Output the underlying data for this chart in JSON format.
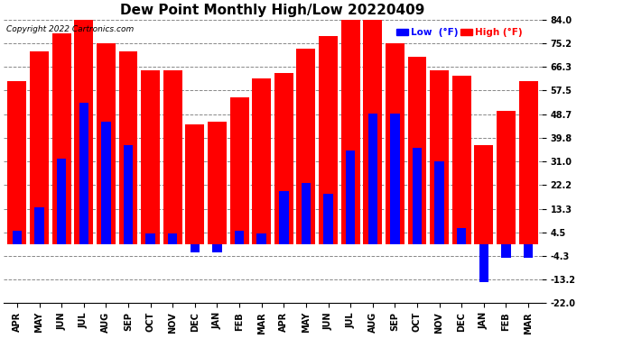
{
  "title": "Dew Point Monthly High/Low 20220409",
  "copyright": "Copyright 2022 Cartronics.com",
  "months": [
    "APR",
    "MAY",
    "JUN",
    "JUL",
    "AUG",
    "SEP",
    "OCT",
    "NOV",
    "DEC",
    "JAN",
    "FEB",
    "MAR",
    "APR",
    "MAY",
    "JUN",
    "JUL",
    "AUG",
    "SEP",
    "OCT",
    "NOV",
    "DEC",
    "JAN",
    "FEB",
    "MAR"
  ],
  "high_values": [
    61,
    72,
    79,
    84,
    75,
    72,
    65,
    65,
    45,
    46,
    55,
    62,
    64,
    73,
    78,
    84,
    84,
    75,
    70,
    65,
    63,
    37,
    50,
    61
  ],
  "low_values": [
    5,
    14,
    32,
    53,
    46,
    37,
    4,
    4,
    -3,
    -3,
    5,
    4,
    20,
    23,
    19,
    35,
    49,
    49,
    36,
    31,
    6,
    -14,
    -5,
    -5
  ],
  "ylim": [
    -22.0,
    84.0
  ],
  "yticks": [
    84.0,
    75.2,
    66.3,
    57.5,
    48.7,
    39.8,
    31.0,
    22.2,
    13.3,
    4.5,
    -4.3,
    -13.2,
    -22.0
  ],
  "high_color": "#ff0000",
  "low_color": "#0000ff",
  "background_color": "#ffffff",
  "grid_color": "#888888",
  "title_fontsize": 11,
  "tick_fontsize": 7,
  "bar_width": 0.85
}
